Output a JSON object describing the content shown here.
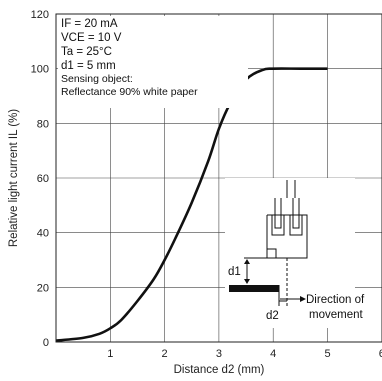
{
  "chart_data": {
    "type": "line",
    "xlabel": "Distance d2 (mm)",
    "ylabel": "Relative light current IL (%)",
    "xlim": [
      0,
      6
    ],
    "ylim": [
      0,
      120
    ],
    "x_ticks": [
      "1",
      "2",
      "3",
      "4",
      "5",
      "6"
    ],
    "y_ticks": [
      "0",
      "20",
      "40",
      "60",
      "80",
      "100",
      "120"
    ],
    "grid": true,
    "series": [
      {
        "x": [
          0.0,
          0.5,
          0.8,
          1.0,
          1.2,
          1.5,
          1.8,
          2.0,
          2.2,
          2.5,
          2.8,
          3.0,
          3.2,
          3.5,
          3.8,
          4.0,
          4.5,
          5.0
        ],
        "y": [
          0.5,
          1.5,
          3.0,
          5.0,
          8.0,
          15.0,
          23.0,
          30.0,
          38.0,
          51.0,
          66.0,
          78.0,
          87.0,
          96.0,
          99.5,
          100,
          100,
          100
        ]
      }
    ],
    "conditions": [
      "IF = 20 mA",
      "VCE = 10 V",
      "Ta = 25°C",
      "d1 = 5 mm",
      "Sensing object:",
      "Reflectance 90% white paper"
    ],
    "inset_labels": {
      "d1": "d1",
      "d2": "d2",
      "direction_line1": "Direction of",
      "direction_line2": "movement"
    }
  }
}
